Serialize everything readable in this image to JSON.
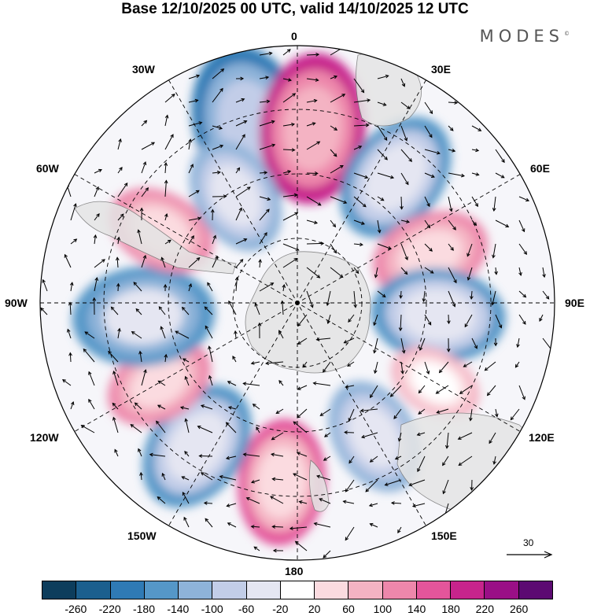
{
  "title": "Base 12/10/2025 00 UTC, valid 14/10/2025 12 UTC",
  "brand": "MODES",
  "brand_mark": "©",
  "longitude_labels": {
    "top": "0",
    "bottom": "180",
    "left": "90W",
    "right": "90E",
    "upper_left_1": "30W",
    "upper_left_2": "60W",
    "upper_right_1": "30E",
    "upper_right_2": "60E",
    "lower_left_1": "120W",
    "lower_left_2": "150W",
    "lower_right_1": "120E",
    "lower_right_2": "150E"
  },
  "vector_scale_label": "30",
  "colorbar": {
    "colors": [
      "#0d3d5c",
      "#1b5f8e",
      "#2f7ab5",
      "#5597c8",
      "#8eb3d9",
      "#c2cde8",
      "#e5e6f2",
      "#ffffff",
      "#fbdbe0",
      "#f4b3c3",
      "#ed87ab",
      "#e4559b",
      "#c7248c",
      "#9a0f86",
      "#5c0a72"
    ],
    "ticks": [
      "-260",
      "-220",
      "-180",
      "-140",
      "-100",
      "-60",
      "-20",
      "20",
      "60",
      "100",
      "140",
      "180",
      "220",
      "260"
    ]
  },
  "anomaly_blobs": [
    {
      "lon": 345,
      "lat_r": 0.72,
      "value": -220
    },
    {
      "lon": 5,
      "lat_r": 0.68,
      "value": 200
    },
    {
      "lon": 38,
      "lat_r": 0.62,
      "value": -160
    },
    {
      "lon": 70,
      "lat_r": 0.55,
      "value": 120
    },
    {
      "lon": 95,
      "lat_r": 0.55,
      "value": -160
    },
    {
      "lon": 120,
      "lat_r": 0.62,
      "value": 60
    },
    {
      "lon": 150,
      "lat_r": 0.6,
      "value": -120
    },
    {
      "lon": 185,
      "lat_r": 0.7,
      "value": 140
    },
    {
      "lon": 215,
      "lat_r": 0.68,
      "value": -160
    },
    {
      "lon": 240,
      "lat_r": 0.62,
      "value": 100
    },
    {
      "lon": 265,
      "lat_r": 0.6,
      "value": -180
    },
    {
      "lon": 298,
      "lat_r": 0.6,
      "value": 100
    },
    {
      "lon": 330,
      "lat_r": 0.48,
      "value": -120
    }
  ]
}
